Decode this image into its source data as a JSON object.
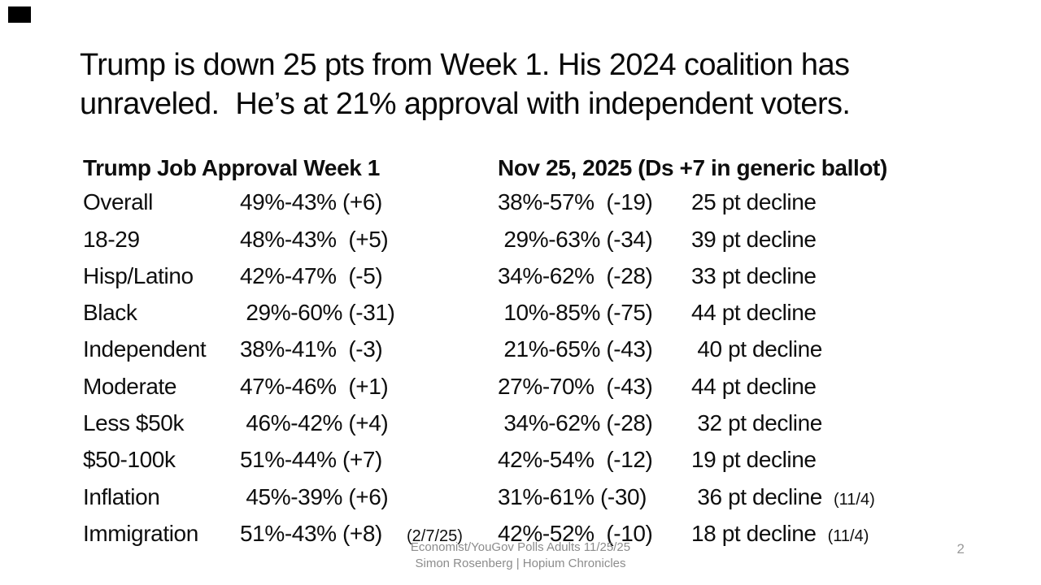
{
  "slide": {
    "title_line1": "Trump is down 25 pts from Week 1. His 2024 coalition has",
    "title_line2": "unraveled.  He’s at 21% approval with independent voters.",
    "page_number": "2",
    "footer_line1": "Economist/YouGov Polls Adults 11/25/25",
    "footer_line2": "Simon Rosenberg | Hopium Chronicles"
  },
  "table": {
    "header_left": "Trump Job Approval Week 1",
    "header_right": "Nov 25, 2025 (Ds +7 in generic ballot)",
    "rows": [
      {
        "label": "Overall",
        "week1": "49%-43% (+6)",
        "week1_note": "",
        "nov25": "38%-57%  (-19)",
        "decline": "25 pt decline",
        "date_note": ""
      },
      {
        "label": "18-29",
        "week1": "48%-43%  (+5)",
        "week1_note": "",
        "nov25": " 29%-63% (-34)",
        "decline": "39 pt decline",
        "date_note": ""
      },
      {
        "label": "Hisp/Latino",
        "week1": "42%-47%  (-5)",
        "week1_note": "",
        "nov25": "34%-62%  (-28)",
        "decline": "33 pt decline",
        "date_note": ""
      },
      {
        "label": "Black",
        "week1": " 29%-60% (-31)",
        "week1_note": "",
        "nov25": " 10%-85% (-75)",
        "decline": "44 pt decline",
        "date_note": ""
      },
      {
        "label": "Independent",
        "week1": "38%-41%  (-3)",
        "week1_note": "",
        "nov25": " 21%-65% (-43)",
        "decline": " 40 pt decline",
        "date_note": ""
      },
      {
        "label": "Moderate",
        "week1": "47%-46%  (+1)",
        "week1_note": "",
        "nov25": "27%-70%  (-43)",
        "decline": "44 pt decline",
        "date_note": ""
      },
      {
        "label": "Less $50k",
        "week1": " 46%-42% (+4)",
        "week1_note": "",
        "nov25": " 34%-62% (-28)",
        "decline": " 32 pt decline",
        "date_note": ""
      },
      {
        "label": "$50-100k",
        "week1": "51%-44% (+7)",
        "week1_note": "",
        "nov25": "42%-54%  (-12)",
        "decline": "19 pt decline",
        "date_note": ""
      },
      {
        "label": "Inflation",
        "week1": " 45%-39% (+6)",
        "week1_note": "",
        "nov25": "31%-61% (-30)",
        "decline": " 36 pt decline",
        "date_note": "(11/4)"
      },
      {
        "label": "Immigration",
        "week1": "51%-43% (+8)",
        "week1_note": "(2/7/25)",
        "nov25": "42%-52%  (-10)",
        "decline": "18 pt decline",
        "date_note": "(11/4)"
      }
    ]
  },
  "colors": {
    "background": "#ffffff",
    "text": "#0e0e0e",
    "footer_text": "#8c8c8c",
    "corner_mark": "#000000"
  }
}
